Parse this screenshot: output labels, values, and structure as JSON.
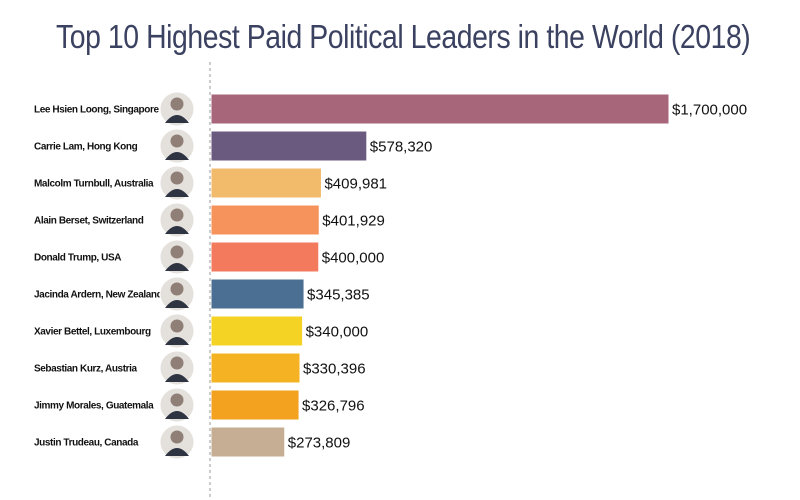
{
  "title": "Top 10 Highest Paid Political Leaders in the World (2018)",
  "chart_data": {
    "type": "bar",
    "orientation": "horizontal",
    "title": "Top 10 Highest Paid Political Leaders in the World (2018)",
    "xlabel": "",
    "ylabel": "",
    "grid": false,
    "categories": [
      "Lee Hsien Loong, Singapore",
      "Carrie Lam, Hong Kong",
      "Malcolm Turnbull, Australia",
      "Alain Berset, Switzerland",
      "Donald Trump, USA",
      "Jacinda Ardern,  New Zealand",
      "Xavier Bettel, Luxembourg",
      "Sebastian Kurz, Austria",
      "Jimmy Morales, Guatemala",
      "Justin Trudeau, Canada"
    ],
    "values": [
      1700000,
      578320,
      409981,
      401929,
      400000,
      345385,
      340000,
      330396,
      326796,
      273809
    ],
    "value_labels": [
      "$1,700,000",
      "$578,320",
      "$409,981",
      "$401,929",
      "$400,000",
      "$345,385",
      "$340,000",
      "$330,396",
      "$326,796",
      "$273,809"
    ],
    "colors": [
      "#a8667a",
      "#6b5a80",
      "#f2bb6c",
      "#f6935d",
      "#f47a5e",
      "#4a6f92",
      "#f5d324",
      "#f5b323",
      "#f2a21e",
      "#c5ae94"
    ],
    "xlim": [
      0,
      1700000
    ]
  }
}
